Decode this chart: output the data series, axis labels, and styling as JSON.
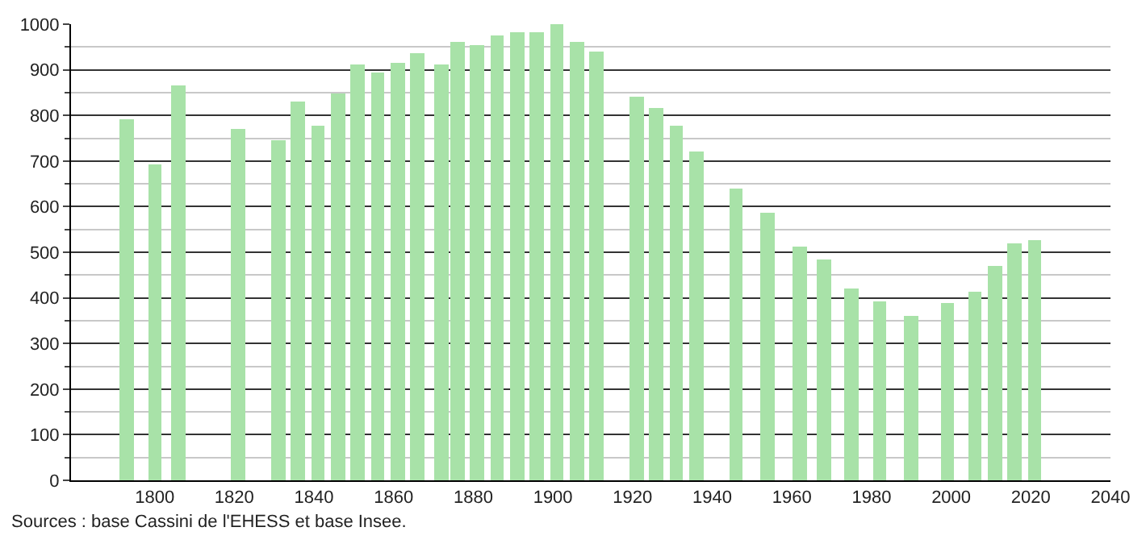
{
  "chart_data": {
    "type": "bar",
    "x": [
      1793,
      1800,
      1806,
      1821,
      1831,
      1836,
      1841,
      1846,
      1851,
      1856,
      1861,
      1866,
      1872,
      1876,
      1881,
      1886,
      1891,
      1896,
      1901,
      1906,
      1911,
      1921,
      1926,
      1931,
      1936,
      1946,
      1954,
      1962,
      1968,
      1975,
      1982,
      1990,
      1999,
      2006,
      2011,
      2016,
      2021
    ],
    "values": [
      793,
      692,
      866,
      772,
      747,
      830,
      776,
      847,
      910,
      894,
      914,
      938,
      910,
      962,
      955,
      977,
      983,
      983,
      1000,
      962,
      941,
      841,
      818,
      776,
      721,
      638,
      586,
      514,
      483,
      422,
      393,
      362,
      387,
      414,
      470,
      521,
      525
    ],
    "color": "#a8e2a8",
    "xlim": [
      1779,
      2040
    ],
    "xticks": [
      1800,
      1820,
      1840,
      1860,
      1880,
      1900,
      1920,
      1940,
      1960,
      1980,
      2000,
      2020,
      2040
    ],
    "ylim": [
      0,
      1000
    ],
    "yticks": [
      0,
      100,
      200,
      300,
      400,
      500,
      600,
      700,
      800,
      900,
      1000
    ],
    "grid": "y",
    "annotations": [
      "Sources : base Cassini de l'EHESS et base Insee."
    ]
  }
}
